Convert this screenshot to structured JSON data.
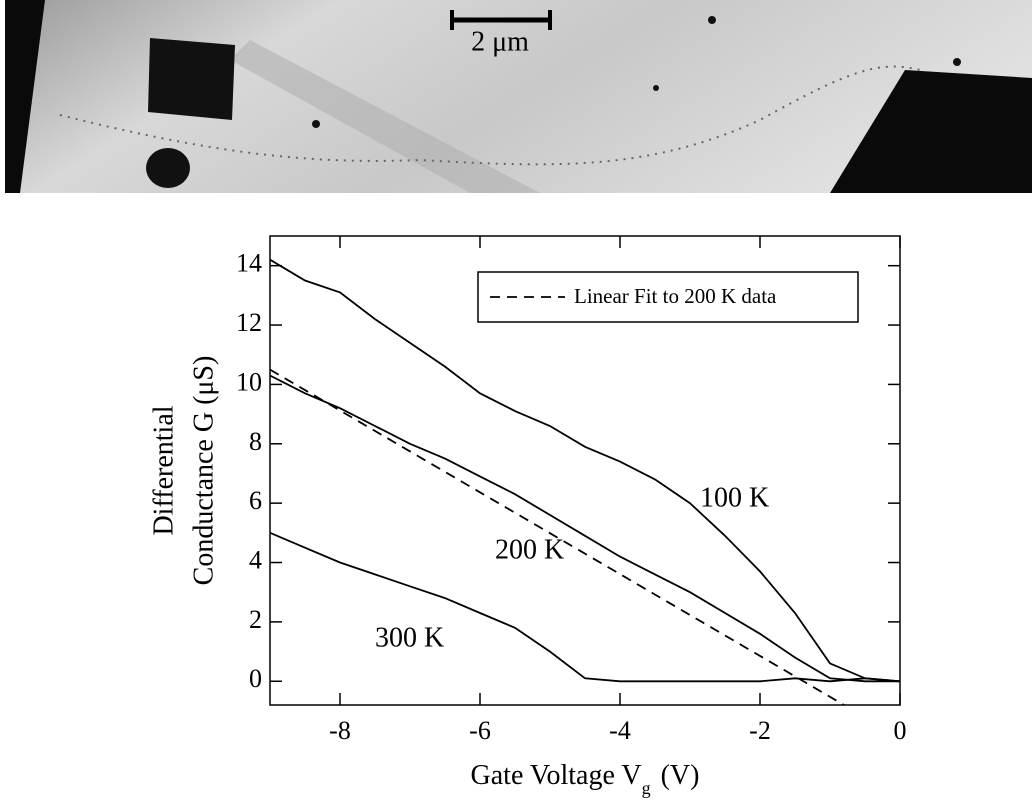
{
  "micrograph": {
    "scale_label": "2 μm"
  },
  "chart_data": {
    "type": "line",
    "ylabel": [
      "Differential",
      "Conductance G (μS)"
    ],
    "xlabel": [
      "Gate Voltage V",
      "g",
      "(V)"
    ],
    "xlim": [
      -9,
      0
    ],
    "xticks": [
      -8,
      -6,
      -4,
      -2,
      0
    ],
    "ylim": [
      -0.8,
      15
    ],
    "yticks": [
      0,
      2,
      4,
      6,
      8,
      10,
      12,
      14
    ],
    "x": [
      -9,
      -8.5,
      -8,
      -7.5,
      -7,
      -6.5,
      -6,
      -5.5,
      -5,
      -4.5,
      -4,
      -3.5,
      -3,
      -2.5,
      -2,
      -1.5,
      -1,
      -0.5,
      0
    ],
    "series": [
      {
        "name": "100 K",
        "color": "#000000",
        "values": [
          14.2,
          13.5,
          13.1,
          12.2,
          11.4,
          10.6,
          9.7,
          9.1,
          8.6,
          7.9,
          7.4,
          6.8,
          6.0,
          4.9,
          3.7,
          2.3,
          0.6,
          0.1,
          0.0
        ]
      },
      {
        "name": "200 K",
        "color": "#000000",
        "values": [
          10.3,
          9.7,
          9.2,
          8.6,
          8.0,
          7.5,
          6.9,
          6.3,
          5.6,
          4.9,
          4.2,
          3.6,
          3.0,
          2.3,
          1.6,
          0.8,
          0.1,
          0.0,
          0.0
        ]
      },
      {
        "name": "300 K",
        "color": "#000000",
        "values": [
          5.0,
          4.5,
          4.0,
          3.6,
          3.2,
          2.8,
          2.3,
          1.8,
          1.0,
          0.1,
          0.0,
          0.0,
          0.0,
          0.0,
          0.0,
          0.1,
          0.0,
          0.1,
          0.0
        ]
      },
      {
        "name": "Linear Fit to 200 K data",
        "color": "#000000",
        "dashed": true,
        "legend": true,
        "x": [
          -9,
          -0.8
        ],
        "values": [
          10.5,
          -0.8
        ]
      }
    ]
  }
}
